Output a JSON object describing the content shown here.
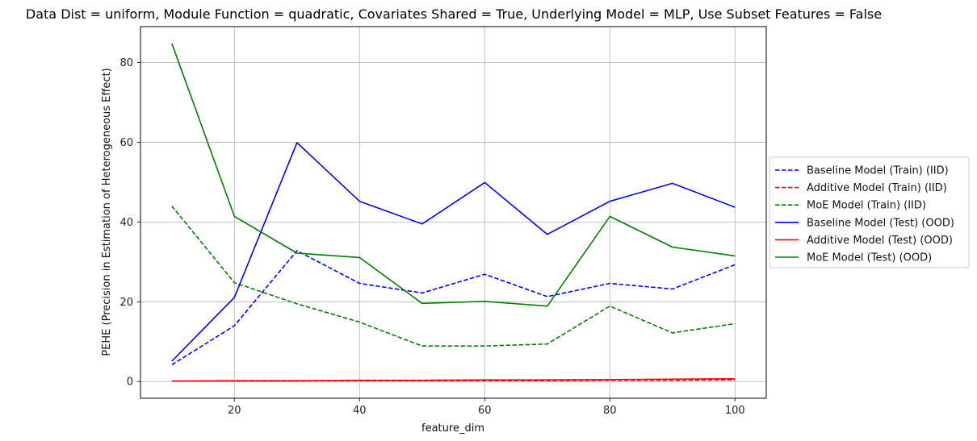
{
  "chart_data": {
    "type": "line",
    "title": "Data Dist = uniform, Module Function = quadratic, Covariates Shared = True, Underlying Model = MLP, Use Subset Features = False",
    "xlabel": "feature_dim",
    "ylabel": "PEHE (Precision in Estimation of Heterogeneous Effect)",
    "xlim": [
      5,
      105
    ],
    "ylim": [
      -4.2,
      89
    ],
    "xticks": [
      20,
      40,
      60,
      80,
      100
    ],
    "yticks": [
      0,
      20,
      40,
      60,
      80
    ],
    "grid": true,
    "legend_position": "center-right-outside",
    "x": [
      10,
      20,
      30,
      40,
      50,
      60,
      70,
      80,
      90,
      100
    ],
    "series": [
      {
        "name": "Baseline Model (Train) (IID)",
        "color": "#0000ff",
        "style": "dashed",
        "values": [
          4.2,
          14.0,
          32.8,
          24.6,
          22.2,
          26.9,
          21.3,
          24.6,
          23.2,
          29.3
        ]
      },
      {
        "name": "Additive Model (Train) (IID)",
        "color": "#ff0000",
        "style": "dashed",
        "values": [
          0.1,
          0.1,
          0.1,
          0.2,
          0.2,
          0.2,
          0.2,
          0.3,
          0.3,
          0.4
        ]
      },
      {
        "name": "MoE Model (Train) (IID)",
        "color": "#008000",
        "style": "dashed",
        "values": [
          44.0,
          24.8,
          19.5,
          14.9,
          8.9,
          8.9,
          9.4,
          18.9,
          12.2,
          14.5
        ]
      },
      {
        "name": "Baseline Model (Test) (OOD)",
        "color": "#0000ff",
        "style": "solid",
        "values": [
          5.1,
          21.1,
          59.9,
          45.2,
          39.5,
          49.9,
          36.9,
          45.2,
          49.7,
          43.7
        ]
      },
      {
        "name": "Additive Model (Test) (OOD)",
        "color": "#ff0000",
        "style": "solid",
        "values": [
          0.1,
          0.2,
          0.2,
          0.3,
          0.3,
          0.4,
          0.4,
          0.5,
          0.6,
          0.7
        ]
      },
      {
        "name": "MoE Model (Test) (OOD)",
        "color": "#008000",
        "style": "solid",
        "values": [
          84.8,
          41.4,
          32.2,
          31.1,
          19.6,
          20.1,
          18.9,
          41.4,
          33.7,
          31.5
        ]
      }
    ]
  }
}
